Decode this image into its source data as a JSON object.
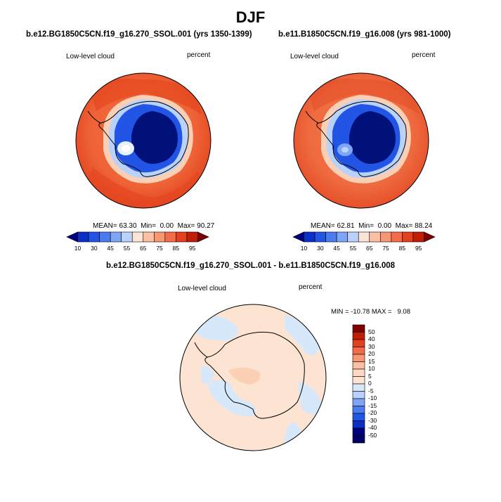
{
  "main_title": "DJF",
  "panels": [
    {
      "title": "b.e12.BG1850C5CN.f19_g16.270_SSOL.001 (yrs 1350-1399)",
      "variable": "Low-level cloud",
      "units": "percent",
      "stats": {
        "mean": "63.30",
        "min": "0.00",
        "max": "90.27"
      },
      "stats_labels": {
        "mean": "MEAN=",
        "min": "Min=",
        "max": "Max="
      }
    },
    {
      "title": "b.e11.B1850C5CN.f19_g16.008 (yrs 981-1000)",
      "variable": "Low-level cloud",
      "units": "percent",
      "stats": {
        "mean": "62.81",
        "min": "0.00",
        "max": "88.24"
      },
      "stats_labels": {
        "mean": "MEAN=",
        "min": "Min=",
        "max": "Max="
      }
    }
  ],
  "diff_panel": {
    "title": "b.e12.BG1850C5CN.f19_g16.270_SSOL.001 - b.e11.B1850C5CN.f19_g16.008",
    "variable": "Low-level cloud",
    "units": "percent",
    "minmax_text": "MIN = -10.78 MAX =   9.08"
  },
  "colorbar_main": {
    "ticks": [
      "10",
      "30",
      "45",
      "55",
      "65",
      "75",
      "85",
      "95"
    ],
    "colors": [
      "#00007f",
      "#0a30c8",
      "#2255e6",
      "#4a7cf0",
      "#7ea6f5",
      "#b9d2fb",
      "#fce5d6",
      "#fbbfa3",
      "#f79873",
      "#f46b48",
      "#e5401e",
      "#c21d05",
      "#7e0000"
    ]
  },
  "colorbar_diff": {
    "ticks": [
      "50",
      "40",
      "30",
      "20",
      "15",
      "10",
      "5",
      "0",
      "-5",
      "-10",
      "-15",
      "-20",
      "-30",
      "-40",
      "-50"
    ],
    "colors": [
      "#7e0000",
      "#c21d05",
      "#e5401e",
      "#f46b48",
      "#f79873",
      "#fbbfa3",
      "#fdd9c4",
      "#fde4d2",
      "#d7e8fb",
      "#b9d2fb",
      "#7ea6f5",
      "#4a7cf0",
      "#2255e6",
      "#0a30c8",
      "#00007f",
      "#000068"
    ]
  },
  "colors": {
    "ocean_high": "#e2461f",
    "ocean_mid": "#f06a3f",
    "ice_edge": "#fbcfb3",
    "ice_low": "#2255e6",
    "interior": "#00117a",
    "diff_bg": "#fde4d2",
    "diff_neg": "#d7e8fb"
  }
}
